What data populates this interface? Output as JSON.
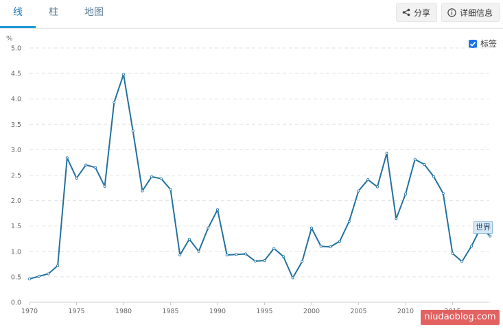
{
  "tabs": [
    {
      "label": "线",
      "active": true
    },
    {
      "label": "柱",
      "active": false
    },
    {
      "label": "地图",
      "active": false
    }
  ],
  "toolbar": {
    "share_label": "分享",
    "details_label": "详细信息"
  },
  "label_toggle": {
    "label": "标签",
    "checked": true
  },
  "watermark": "niudaoblog.com",
  "series_label": "世界",
  "colors": {
    "line": "#21719e",
    "accent": "#1f9ad6",
    "grid": "#e3e3e3"
  },
  "chart_data": {
    "type": "line",
    "title": "",
    "xlabel": "",
    "ylabel": "%",
    "ylim": [
      0,
      5
    ],
    "yticks": [
      "0.0",
      "0.5",
      "1.0",
      "1.5",
      "2.0",
      "2.5",
      "3.0",
      "3.5",
      "4.0",
      "4.5",
      "5.0"
    ],
    "xticks": [
      "1970",
      "1975",
      "1980",
      "1985",
      "1990",
      "1995",
      "2000",
      "2005",
      "2010",
      "2015"
    ],
    "grid": true,
    "series": [
      {
        "name": "世界",
        "x": [
          1970,
          1971,
          1972,
          1973,
          1974,
          1975,
          1976,
          1977,
          1978,
          1979,
          1980,
          1981,
          1982,
          1983,
          1984,
          1985,
          1986,
          1987,
          1988,
          1989,
          1990,
          1991,
          1992,
          1993,
          1994,
          1995,
          1996,
          1997,
          1998,
          1999,
          2000,
          2001,
          2002,
          2003,
          2004,
          2005,
          2006,
          2007,
          2008,
          2009,
          2010,
          2011,
          2012,
          2013,
          2014,
          2015,
          2016,
          2017,
          2018,
          2019
        ],
        "values": [
          0.46,
          0.51,
          0.56,
          0.72,
          2.84,
          2.44,
          2.7,
          2.65,
          2.28,
          3.93,
          4.48,
          3.37,
          2.19,
          2.47,
          2.43,
          2.22,
          0.93,
          1.24,
          1.0,
          1.46,
          1.82,
          0.93,
          0.94,
          0.95,
          0.81,
          0.82,
          1.06,
          0.9,
          0.48,
          0.8,
          1.46,
          1.1,
          1.09,
          1.2,
          1.59,
          2.19,
          2.41,
          2.27,
          2.93,
          1.64,
          2.13,
          2.81,
          2.71,
          2.47,
          2.14,
          0.96,
          0.8,
          1.1,
          1.47,
          1.3
        ]
      }
    ]
  }
}
